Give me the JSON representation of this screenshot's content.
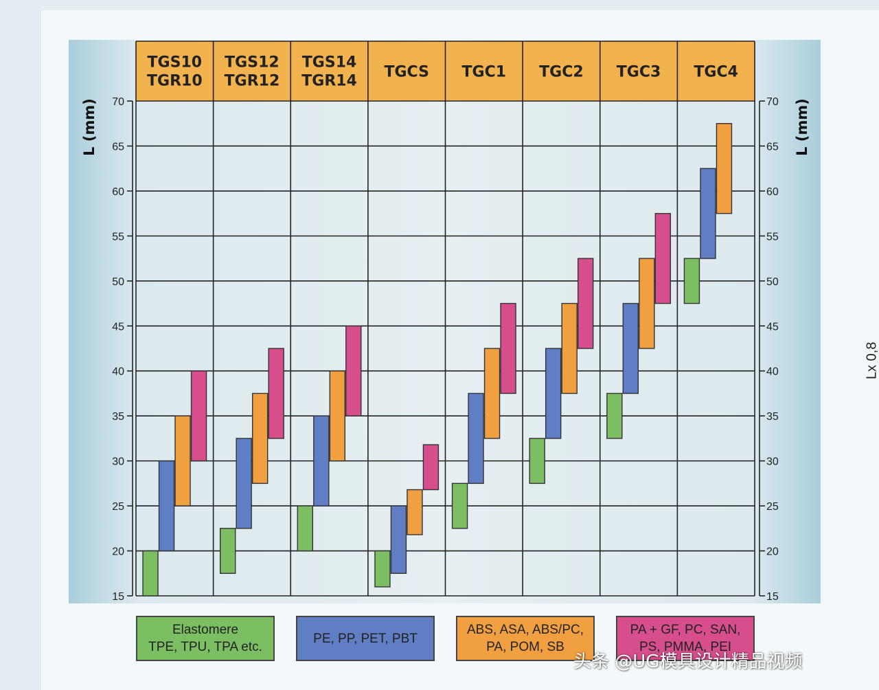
{
  "chart_data": {
    "type": "range-bar",
    "ylabel": "L (mm)",
    "ylabel_right": "L (mm)",
    "ylim": [
      15,
      70
    ],
    "yticks": [
      15,
      20,
      25,
      30,
      35,
      40,
      45,
      50,
      55,
      60,
      65,
      70
    ],
    "grid": true,
    "categories": [
      [
        "TGS10",
        "TGR10"
      ],
      [
        "TGS12",
        "TGR12"
      ],
      [
        "TGS14",
        "TGR14"
      ],
      [
        "TGCS"
      ],
      [
        "TGC1"
      ],
      [
        "TGC2"
      ],
      [
        "TGC3"
      ],
      [
        "TGC4"
      ]
    ],
    "series": [
      {
        "name": "Elastomere TPE, TPU, TPA etc.",
        "color": "#7bbf62",
        "ranges": [
          [
            15,
            20
          ],
          [
            17.5,
            22.5
          ],
          [
            20,
            25
          ],
          [
            16,
            20
          ],
          [
            22.5,
            27.5
          ],
          [
            27.5,
            32.5
          ],
          [
            32.5,
            37.5
          ],
          [
            47.5,
            52.5
          ]
        ]
      },
      {
        "name": "PE, PP, PET, PBT",
        "color": "#5f7ec3",
        "ranges": [
          [
            20,
            30
          ],
          [
            22.5,
            32.5
          ],
          [
            25,
            35
          ],
          [
            17.5,
            25
          ],
          [
            27.5,
            37.5
          ],
          [
            32.5,
            42.5
          ],
          [
            37.5,
            47.5
          ],
          [
            52.5,
            62.5
          ]
        ]
      },
      {
        "name": "ABS, ASA, ABS/PC, PA, POM, SB",
        "color": "#f0a040",
        "ranges": [
          [
            25,
            35
          ],
          [
            27.5,
            37.5
          ],
          [
            30,
            40
          ],
          [
            21.8,
            26.8
          ],
          [
            32.5,
            42.5
          ],
          [
            37.5,
            47.5
          ],
          [
            42.5,
            52.5
          ],
          [
            57.5,
            67.5
          ]
        ]
      },
      {
        "name": "PA + GF, PC, SAN, PS, PMMA, PEI",
        "color": "#d64f8c",
        "ranges": [
          [
            30,
            40
          ],
          [
            32.5,
            42.5
          ],
          [
            35,
            45
          ],
          [
            26.8,
            31.8
          ],
          [
            37.5,
            47.5
          ],
          [
            42.5,
            52.5
          ],
          [
            47.5,
            57.5
          ],
          [
            null,
            null
          ]
        ]
      }
    ]
  },
  "legend": [
    {
      "line1": "Elastomere",
      "line2": "TPE, TPU, TPA etc.",
      "color": "#7bbf62"
    },
    {
      "line1": "PE, PP, PET, PBT",
      "line2": "",
      "color": "#5f7ec3"
    },
    {
      "line1": "ABS, ASA, ABS/PC,",
      "line2": "PA, POM, SB",
      "color": "#f0a040"
    },
    {
      "line1": "PA + GF, PC, SAN,",
      "line2": "PS, PMMA, PEI",
      "color": "#d64f8c"
    }
  ],
  "right_label": "Lx 0,8",
  "watermark": "头条 @UG模具设计精品视频",
  "colors": {
    "header": "#f2b24d",
    "grid": "#222222"
  }
}
